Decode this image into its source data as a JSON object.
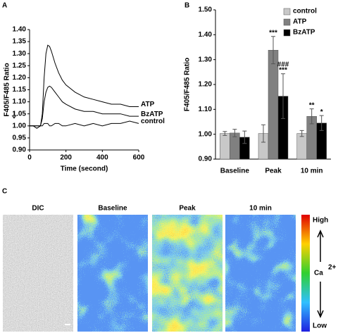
{
  "chart_data": [
    {
      "type": "line",
      "panel": "A",
      "ylabel": "F405/F485 Ratio",
      "xlabel": "Time (second)",
      "x": [
        0,
        20,
        40,
        60,
        70,
        80,
        90,
        100,
        110,
        120,
        140,
        160,
        180,
        200,
        250,
        300,
        350,
        400,
        450,
        500,
        550,
        600
      ],
      "series": [
        {
          "name": "ATP",
          "color": "#000000",
          "values": [
            1.0,
            1.0,
            1.0,
            1.0,
            1.05,
            1.2,
            1.3,
            1.335,
            1.33,
            1.31,
            1.26,
            1.22,
            1.19,
            1.17,
            1.14,
            1.12,
            1.11,
            1.1,
            1.09,
            1.09,
            1.08,
            1.08
          ]
        },
        {
          "name": "BzATP",
          "color": "#000000",
          "values": [
            1.0,
            1.0,
            1.0,
            1.0,
            1.03,
            1.1,
            1.14,
            1.16,
            1.165,
            1.16,
            1.14,
            1.12,
            1.1,
            1.09,
            1.07,
            1.06,
            1.06,
            1.05,
            1.05,
            1.05,
            1.04,
            1.04
          ]
        },
        {
          "name": "control",
          "color": "#000000",
          "values": [
            1.0,
            1.0,
            0.99,
            1.0,
            1.0,
            1.01,
            1.01,
            1.01,
            1.0,
            1.0,
            1.01,
            1.01,
            1.0,
            1.0,
            1.01,
            1.0,
            1.01,
            1.0,
            1.01,
            1.01,
            1.02,
            1.01
          ]
        }
      ],
      "xlim": [
        0,
        600
      ],
      "xticks": [
        0,
        200,
        400,
        600
      ],
      "ylim": [
        0.9,
        1.4
      ],
      "yticks": [
        {
          "value": 0.9,
          "label": "0.90"
        },
        {
          "value": 0.95,
          "label": "0.95"
        },
        {
          "value": 1.0,
          "label": "1.00"
        },
        {
          "value": 1.05,
          "label": "1.05"
        },
        {
          "value": 1.1,
          "label": "1.10"
        },
        {
          "value": 1.15,
          "label": "1.15"
        },
        {
          "value": 1.2,
          "label": "1.20"
        },
        {
          "value": 1.25,
          "label": "1.25"
        },
        {
          "value": 1.3,
          "label": "1.30"
        },
        {
          "value": 1.35,
          "label": "1.35"
        },
        {
          "value": 1.4,
          "label": "1.40"
        }
      ]
    },
    {
      "type": "bar",
      "panel": "B",
      "ylabel": "F405/F485 Ratio",
      "categories": [
        "Baseline",
        "Peak",
        "10 min"
      ],
      "series": [
        {
          "name": "control",
          "color": "#c8c8c8",
          "values": [
            1.003,
            1.003,
            1.003
          ],
          "errors": [
            0.008,
            0.035,
            0.012
          ],
          "significance": [
            null,
            null,
            null
          ]
        },
        {
          "name": "ATP",
          "color": "#808080",
          "values": [
            1.005,
            1.338,
            1.072
          ],
          "errors": [
            0.015,
            0.055,
            0.03
          ],
          "significance": [
            null,
            [
              "***"
            ],
            [
              "**"
            ]
          ]
        },
        {
          "name": "BzATP",
          "color": "#000000",
          "values": [
            0.988,
            1.153,
            1.045
          ],
          "errors": [
            0.025,
            0.09,
            0.03
          ],
          "significance": [
            null,
            [
              "###",
              "***"
            ],
            [
              "*"
            ]
          ]
        }
      ],
      "ylim": [
        0.9,
        1.5
      ],
      "yticks": [
        {
          "value": 0.9,
          "label": "0.90"
        },
        {
          "value": 1.0,
          "label": "1.00"
        },
        {
          "value": 1.1,
          "label": "1.10"
        },
        {
          "value": 1.2,
          "label": "1.20"
        },
        {
          "value": 1.3,
          "label": "1.30"
        },
        {
          "value": 1.4,
          "label": "1.40"
        },
        {
          "value": 1.5,
          "label": "1.50"
        }
      ],
      "legend": "top-right"
    }
  ],
  "panel_c": {
    "panel": "C",
    "titles": [
      "DIC",
      "Baseline",
      "Peak",
      "10 min"
    ],
    "high": "High",
    "low": "Low",
    "ion": "Ca",
    "charge": "2+"
  }
}
